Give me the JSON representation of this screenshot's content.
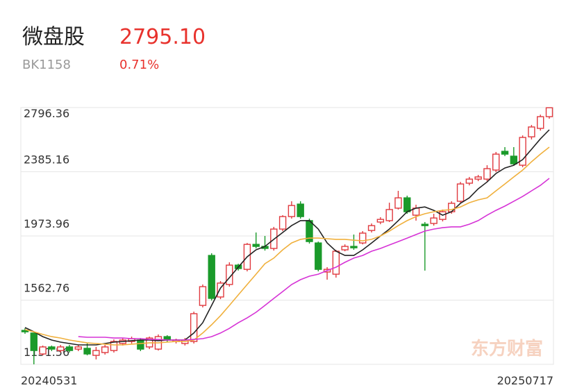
{
  "header": {
    "name": "微盘股",
    "price": "2795.10",
    "code": "BK1158",
    "change": "0.71%"
  },
  "chart_data": {
    "type": "candlestick",
    "watermark": "东方财富",
    "categories": [
      "20240531",
      null,
      null,
      null,
      null,
      null,
      null,
      null,
      null,
      null,
      null,
      null,
      null,
      null,
      null,
      null,
      null,
      null,
      null,
      null,
      null,
      null,
      null,
      null,
      null,
      null,
      null,
      null,
      null,
      null,
      null,
      null,
      null,
      null,
      null,
      null,
      null,
      null,
      null,
      null,
      null,
      null,
      null,
      null,
      null,
      null,
      null,
      null,
      null,
      null,
      null,
      null,
      null,
      null,
      null,
      null,
      null,
      null,
      null,
      "20250717"
    ],
    "open": [
      1369,
      1352,
      1218,
      1263,
      1240,
      1263,
      1249,
      1254,
      1209,
      1227,
      1240,
      1285,
      1298,
      1307,
      1263,
      1249,
      1329,
      1298,
      1285,
      1298,
      1529,
      1849,
      1583,
      1663,
      1787,
      1760,
      1920,
      1907,
      1894,
      2018,
      2098,
      2178,
      2072,
      1929,
      1743,
      1729,
      1885,
      1907,
      1929,
      2009,
      2063,
      2072,
      2152,
      2218,
      2107,
      2049,
      2054,
      2080,
      2129,
      2196,
      2312,
      2338,
      2338,
      2396,
      2516,
      2485,
      2427,
      2609,
      2663,
      2738
    ],
    "high": [
      1383,
      1343,
      1272,
      1272,
      1276,
      1276,
      1276,
      1285,
      1263,
      1276,
      1311,
      1320,
      1329,
      1320,
      1329,
      1343,
      1338,
      1316,
      1320,
      1489,
      1663,
      1863,
      1685,
      1805,
      1796,
      1929,
      1996,
      1974,
      2032,
      2107,
      2196,
      2196,
      2085,
      1938,
      1774,
      1885,
      1920,
      1983,
      2005,
      2054,
      2094,
      2187,
      2263,
      2232,
      2174,
      2063,
      2116,
      2143,
      2196,
      2320,
      2352,
      2365,
      2427,
      2512,
      2543,
      2543,
      2618,
      2685,
      2751,
      2796.36
    ],
    "low": [
      1347,
      1151.56,
      1209,
      1236,
      1227,
      1227,
      1236,
      1209,
      1183,
      1214,
      1227,
      1272,
      1285,
      1236,
      1249,
      1240,
      1294,
      1285,
      1272,
      1285,
      1516,
      1560,
      1569,
      1649,
      1752,
      1747,
      1894,
      1880,
      1880,
      2005,
      2085,
      2085,
      1925,
      1747,
      1694,
      1707,
      1876,
      1885,
      1920,
      1996,
      2049,
      2063,
      2143,
      2116,
      2072,
      1752,
      2040,
      2067,
      2116,
      2187,
      2298,
      2325,
      2325,
      2383,
      2485,
      2423,
      2414,
      2592,
      2649,
      2725
    ],
    "close": [
      1360,
      1240,
      1263,
      1249,
      1263,
      1240,
      1263,
      1218,
      1240,
      1263,
      1298,
      1307,
      1316,
      1249,
      1320,
      1329,
      1307,
      1307,
      1307,
      1476,
      1649,
      1574,
      1672,
      1787,
      1765,
      1920,
      1907,
      1894,
      2018,
      2098,
      2169,
      2098,
      1938,
      1760,
      1760,
      1876,
      1907,
      1898,
      1992,
      2040,
      2080,
      2143,
      2218,
      2129,
      2152,
      2040,
      2089,
      2129,
      2183,
      2307,
      2338,
      2352,
      2405,
      2498,
      2498,
      2436,
      2605,
      2672,
      2738,
      2795.1
    ],
    "up_color": "#e0393e",
    "down_color": "#1a9a2a",
    "lines": [
      {
        "color": "#222222",
        "values": [
          1387,
          1360,
          1329,
          1307,
          1294,
          1285,
          1276,
          1276,
          1276,
          1285,
          1294,
          1298,
          1303,
          1307,
          1307,
          1303,
          1307,
          1307,
          1307,
          1352,
          1418,
          1529,
          1640,
          1707,
          1774,
          1840,
          1885,
          1907,
          1952,
          1996,
          2040,
          2072,
          2072,
          2018,
          1929,
          1876,
          1849,
          1849,
          1885,
          1929,
          1974,
          2018,
          2072,
          2129,
          2152,
          2160,
          2138,
          2107,
          2129,
          2183,
          2218,
          2276,
          2320,
          2374,
          2409,
          2427,
          2463,
          2529,
          2596,
          2654
        ]
      },
      {
        "color": "#f0b03c",
        "values": [
          1374,
          1360,
          1343,
          1329,
          1320,
          1307,
          1298,
          1289,
          1285,
          1281,
          1276,
          1276,
          1281,
          1285,
          1289,
          1289,
          1294,
          1298,
          1298,
          1307,
          1352,
          1405,
          1463,
          1529,
          1596,
          1663,
          1729,
          1796,
          1832,
          1885,
          1929,
          1952,
          1960,
          1960,
          1956,
          1952,
          1952,
          1947,
          1943,
          1952,
          1974,
          2005,
          2040,
          2072,
          2098,
          2116,
          2129,
          2138,
          2143,
          2160,
          2187,
          2205,
          2218,
          2263,
          2307,
          2352,
          2396,
          2449,
          2498,
          2543
        ]
      },
      {
        "color": "#d633d6",
        "values": [
          null,
          null,
          null,
          null,
          null,
          null,
          1329,
          1325,
          1325,
          1325,
          1320,
          1320,
          1316,
          1316,
          1311,
          1311,
          1307,
          1307,
          1307,
          1311,
          1316,
          1329,
          1352,
          1382,
          1418,
          1449,
          1485,
          1529,
          1574,
          1618,
          1663,
          1694,
          1716,
          1729,
          1752,
          1774,
          1805,
          1832,
          1849,
          1876,
          1894,
          1916,
          1938,
          1960,
          1983,
          2005,
          2018,
          2027,
          2032,
          2032,
          2049,
          2072,
          2107,
          2138,
          2165,
          2196,
          2227,
          2263,
          2298,
          2343
        ]
      }
    ],
    "ylim": [
      1151.56,
      2796.36
    ],
    "yticks": [
      2796.36,
      2385.16,
      1973.96,
      1562.76,
      1151.56
    ],
    "grid": true
  }
}
